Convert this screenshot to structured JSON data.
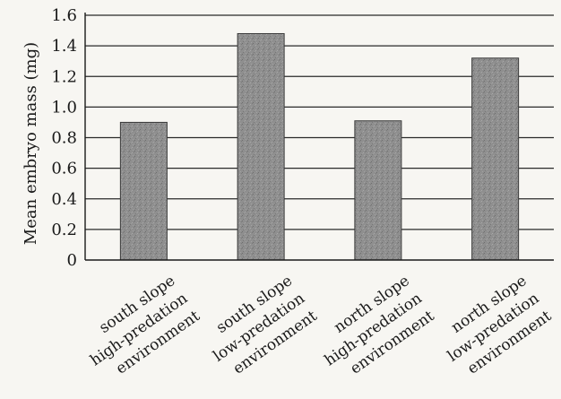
{
  "chart_data": {
    "type": "bar",
    "title": "",
    "categories": [
      [
        "south slope",
        "high-predation",
        "environment"
      ],
      [
        "south slope",
        "low-predation",
        "environment"
      ],
      [
        "north slope",
        "high-predation",
        "environment"
      ],
      [
        "north slope",
        "low-predation",
        "environment"
      ]
    ],
    "values": [
      0.9,
      1.48,
      0.91,
      1.32
    ],
    "xlabel": "",
    "ylabel": "Mean embryo mass (mg)",
    "ylim": [
      0,
      1.6
    ],
    "yticks": [
      "0",
      "0.2",
      "0.4",
      "0.6",
      "0.8",
      "1.0",
      "1.2",
      "1.4",
      "1.6"
    ],
    "grid": true,
    "bar_color": "#8f8f8f"
  }
}
